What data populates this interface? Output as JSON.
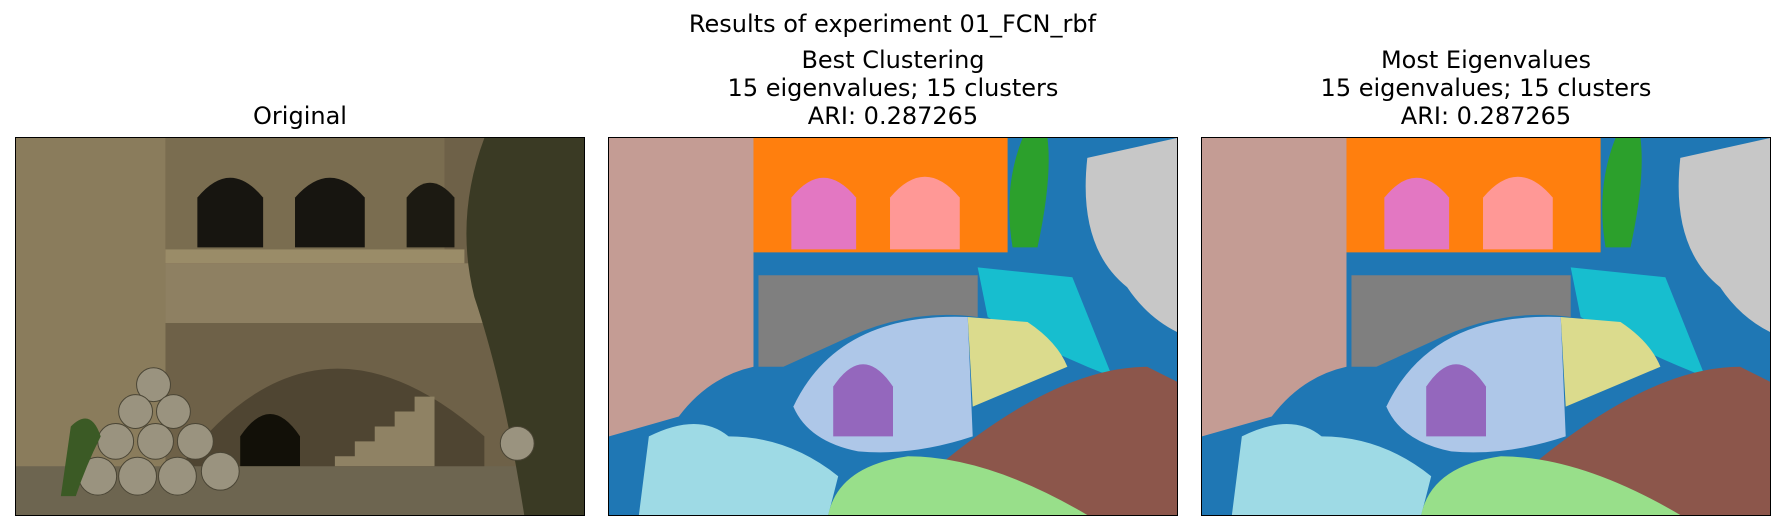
{
  "figure": {
    "suptitle": "Results of experiment 01_FCN_rbf"
  },
  "panels": [
    {
      "title_lines": [
        "Original"
      ],
      "image_description_name": "original-photo"
    },
    {
      "title_lines": [
        "Best Clustering",
        "15 eigenvalues; 15 clusters",
        "ARI: 0.287265"
      ],
      "image_description_name": "segmentation-map"
    },
    {
      "title_lines": [
        "Most Eigenvalues",
        "15 eigenvalues; 15 clusters",
        "ARI: 0.287265"
      ],
      "image_description_name": "segmentation-map"
    }
  ],
  "cluster_colors": {
    "c_blue": "#1f77b4",
    "c_orange": "#ff7f0e",
    "c_green": "#2ca02c",
    "c_red": "#d62728",
    "c_purple": "#9467bd",
    "c_brown": "#8c564b",
    "c_pink": "#e377c2",
    "c_gray": "#7f7f7f",
    "c_olive": "#dbdb8d",
    "c_cyan": "#17becf",
    "c_lightblue": "#aec7e8",
    "c_salmon": "#ff9896",
    "c_mauve": "#c49c94",
    "c_lightgray": "#c7c7c7",
    "c_lightcyan": "#9edae5",
    "c_lightgreen": "#98df8a"
  }
}
